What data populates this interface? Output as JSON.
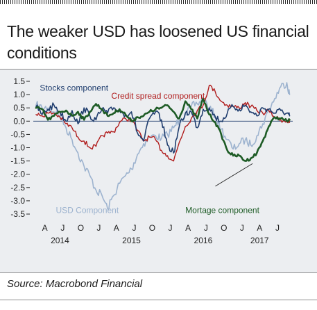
{
  "header": {
    "title": "The weaker USD has loosened US financial conditions"
  },
  "footer": {
    "source": "Source: Macrobond Financial"
  },
  "colors": {
    "stocks": "#1f3d6e",
    "credit": "#b01c1c",
    "usd": "#9db3cf",
    "mortgage": "#1d5b25",
    "zero_line": "#1f3d6e"
  },
  "chart_data": {
    "type": "line",
    "title": "The weaker USD has loosened US financial conditions",
    "xlabel": "",
    "ylabel": "",
    "ylim": [
      -3.5,
      1.5
    ],
    "xlim": [
      "2014-03-01",
      "2017-09-15"
    ],
    "yticks": [
      "1.5",
      "1.0",
      "0.5",
      "0.0",
      "-0.5",
      "-1.0",
      "-1.5",
      "-2.0",
      "-2.5",
      "-3.0",
      "-3.5"
    ],
    "xticks_month": [
      "A",
      "J",
      "O",
      "J",
      "A",
      "J",
      "O",
      "J",
      "A",
      "J",
      "O",
      "J",
      "A",
      "J"
    ],
    "xticks_year": [
      "2014",
      "2015",
      "2016",
      "2017"
    ],
    "grid": false,
    "series": [
      {
        "name": "Stocks component",
        "key": "stocks",
        "points": [
          [
            "2014-03-01",
            0.55
          ],
          [
            "2014-04-01",
            0.25
          ],
          [
            "2014-05-01",
            0.45
          ],
          [
            "2014-06-01",
            0.6
          ],
          [
            "2014-07-01",
            0.35
          ],
          [
            "2014-08-01",
            0.0
          ],
          [
            "2014-09-01",
            0.4
          ],
          [
            "2014-10-01",
            -0.1
          ],
          [
            "2014-11-01",
            0.5
          ],
          [
            "2014-12-01",
            0.2
          ],
          [
            "2015-01-01",
            0.05
          ],
          [
            "2015-02-01",
            0.45
          ],
          [
            "2015-03-01",
            0.3
          ],
          [
            "2015-04-01",
            0.5
          ],
          [
            "2015-05-01",
            0.4
          ],
          [
            "2015-06-01",
            0.25
          ],
          [
            "2015-07-01",
            0.35
          ],
          [
            "2015-08-01",
            -0.45
          ],
          [
            "2015-09-01",
            -0.75
          ],
          [
            "2015-10-01",
            0.1
          ],
          [
            "2015-11-01",
            0.35
          ],
          [
            "2015-12-01",
            0.05
          ],
          [
            "2016-01-01",
            -0.9
          ],
          [
            "2016-02-01",
            -1.2
          ],
          [
            "2016-03-01",
            -0.2
          ],
          [
            "2016-04-01",
            0.3
          ],
          [
            "2016-05-01",
            0.35
          ],
          [
            "2016-06-01",
            -0.25
          ],
          [
            "2016-07-01",
            0.45
          ],
          [
            "2016-08-01",
            0.5
          ],
          [
            "2016-09-01",
            0.15
          ],
          [
            "2016-10-01",
            0.0
          ],
          [
            "2016-11-01",
            0.3
          ],
          [
            "2016-12-01",
            0.55
          ],
          [
            "2017-01-01",
            0.45
          ],
          [
            "2017-02-01",
            0.6
          ],
          [
            "2017-03-01",
            0.35
          ],
          [
            "2017-04-01",
            0.2
          ],
          [
            "2017-05-01",
            0.5
          ],
          [
            "2017-06-01",
            0.45
          ],
          [
            "2017-07-01",
            0.3
          ],
          [
            "2017-08-01",
            0.4
          ],
          [
            "2017-09-01",
            0.3
          ],
          [
            "2017-09-15",
            0.2
          ]
        ]
      },
      {
        "name": "Credit spread component",
        "key": "credit",
        "points": [
          [
            "2014-03-01",
            0.25
          ],
          [
            "2014-04-01",
            0.2
          ],
          [
            "2014-05-01",
            0.3
          ],
          [
            "2014-06-01",
            0.3
          ],
          [
            "2014-07-01",
            0.15
          ],
          [
            "2014-08-01",
            -0.1
          ],
          [
            "2014-09-01",
            -0.25
          ],
          [
            "2014-10-01",
            -0.6
          ],
          [
            "2014-11-01",
            -0.75
          ],
          [
            "2014-12-01",
            -1.0
          ],
          [
            "2015-01-01",
            -0.95
          ],
          [
            "2015-02-01",
            -0.55
          ],
          [
            "2015-03-01",
            -0.45
          ],
          [
            "2015-04-01",
            -0.4
          ],
          [
            "2015-05-01",
            -0.05
          ],
          [
            "2015-06-01",
            0.1
          ],
          [
            "2015-07-01",
            0.05
          ],
          [
            "2015-08-01",
            -0.35
          ],
          [
            "2015-09-01",
            -0.75
          ],
          [
            "2015-10-01",
            -0.6
          ],
          [
            "2015-11-01",
            -0.7
          ],
          [
            "2015-12-01",
            -1.1
          ],
          [
            "2016-01-01",
            -1.3
          ],
          [
            "2016-02-01",
            -1.5
          ],
          [
            "2016-03-01",
            -0.8
          ],
          [
            "2016-04-01",
            -0.2
          ],
          [
            "2016-05-01",
            0.1
          ],
          [
            "2016-06-01",
            0.4
          ],
          [
            "2016-07-01",
            0.6
          ],
          [
            "2016-08-01",
            1.35
          ],
          [
            "2016-09-01",
            1.1
          ],
          [
            "2016-10-01",
            0.75
          ],
          [
            "2016-11-01",
            0.6
          ],
          [
            "2016-12-01",
            0.55
          ],
          [
            "2017-01-01",
            0.5
          ],
          [
            "2017-02-01",
            0.7
          ],
          [
            "2017-03-01",
            0.55
          ],
          [
            "2017-04-01",
            0.4
          ],
          [
            "2017-05-01",
            0.3
          ],
          [
            "2017-06-01",
            0.4
          ],
          [
            "2017-07-01",
            0.15
          ],
          [
            "2017-08-01",
            0.05
          ],
          [
            "2017-09-01",
            0.0
          ],
          [
            "2017-09-15",
            -0.05
          ]
        ]
      },
      {
        "name": "USD Component",
        "key": "usd",
        "points": [
          [
            "2014-03-01",
            0.6
          ],
          [
            "2014-04-01",
            0.5
          ],
          [
            "2014-05-01",
            0.5
          ],
          [
            "2014-06-01",
            0.35
          ],
          [
            "2014-07-01",
            0.2
          ],
          [
            "2014-08-01",
            -0.25
          ],
          [
            "2014-09-01",
            -0.7
          ],
          [
            "2014-10-01",
            -1.2
          ],
          [
            "2014-11-01",
            -1.7
          ],
          [
            "2014-12-01",
            -2.05
          ],
          [
            "2015-01-01",
            -2.6
          ],
          [
            "2015-02-01",
            -2.8
          ],
          [
            "2015-03-01",
            -3.3
          ],
          [
            "2015-04-01",
            -2.8
          ],
          [
            "2015-05-01",
            -2.35
          ],
          [
            "2015-06-01",
            -2.05
          ],
          [
            "2015-07-01",
            -1.8
          ],
          [
            "2015-08-01",
            -1.25
          ],
          [
            "2015-09-01",
            -0.85
          ],
          [
            "2015-10-01",
            -0.6
          ],
          [
            "2015-11-01",
            -0.55
          ],
          [
            "2015-12-01",
            -0.65
          ],
          [
            "2016-01-01",
            -0.5
          ],
          [
            "2016-02-01",
            -0.25
          ],
          [
            "2016-03-01",
            0.05
          ],
          [
            "2016-04-01",
            0.25
          ],
          [
            "2016-05-01",
            0.55
          ],
          [
            "2016-06-01",
            0.65
          ],
          [
            "2016-07-01",
            0.85
          ],
          [
            "2016-08-01",
            0.5
          ],
          [
            "2016-09-01",
            0.2
          ],
          [
            "2016-10-01",
            -0.3
          ],
          [
            "2016-11-01",
            -0.7
          ],
          [
            "2016-12-01",
            -1.05
          ],
          [
            "2017-01-01",
            -0.85
          ],
          [
            "2017-02-01",
            -0.7
          ],
          [
            "2017-03-01",
            -0.9
          ],
          [
            "2017-04-01",
            -0.55
          ],
          [
            "2017-05-01",
            -0.1
          ],
          [
            "2017-06-01",
            0.4
          ],
          [
            "2017-07-01",
            0.85
          ],
          [
            "2017-08-01",
            1.3
          ],
          [
            "2017-09-01",
            1.45
          ],
          [
            "2017-09-15",
            1.0
          ]
        ]
      },
      {
        "name": "Mortage component",
        "key": "mortgage",
        "points": [
          [
            "2014-03-01",
            0.5
          ],
          [
            "2014-04-01",
            0.45
          ],
          [
            "2014-05-01",
            0.05
          ],
          [
            "2014-06-01",
            0.2
          ],
          [
            "2014-07-01",
            0.35
          ],
          [
            "2014-08-01",
            0.4
          ],
          [
            "2014-09-01",
            0.2
          ],
          [
            "2014-10-01",
            0.35
          ],
          [
            "2014-11-01",
            0.05
          ],
          [
            "2014-12-01",
            0.35
          ],
          [
            "2015-01-01",
            0.65
          ],
          [
            "2015-02-01",
            0.45
          ],
          [
            "2015-03-01",
            0.2
          ],
          [
            "2015-04-01",
            0.3
          ],
          [
            "2015-05-01",
            0.45
          ],
          [
            "2015-06-01",
            0.25
          ],
          [
            "2015-07-01",
            0.0
          ],
          [
            "2015-08-01",
            0.15
          ],
          [
            "2015-09-01",
            0.2
          ],
          [
            "2015-10-01",
            0.35
          ],
          [
            "2015-11-01",
            0.45
          ],
          [
            "2015-12-01",
            0.5
          ],
          [
            "2016-01-01",
            0.6
          ],
          [
            "2016-02-01",
            0.35
          ],
          [
            "2016-03-01",
            0.1
          ],
          [
            "2016-04-01",
            0.75
          ],
          [
            "2016-05-01",
            0.45
          ],
          [
            "2016-06-01",
            0.1
          ],
          [
            "2016-07-01",
            0.85
          ],
          [
            "2016-08-01",
            0.25
          ],
          [
            "2016-09-01",
            -0.05
          ],
          [
            "2016-10-01",
            -0.5
          ],
          [
            "2016-11-01",
            -1.1
          ],
          [
            "2016-12-01",
            -1.3
          ],
          [
            "2017-01-01",
            -1.3
          ],
          [
            "2017-02-01",
            -1.5
          ],
          [
            "2017-03-01",
            -1.4
          ],
          [
            "2017-04-01",
            -1.2
          ],
          [
            "2017-05-01",
            -0.75
          ],
          [
            "2017-06-01",
            -0.2
          ],
          [
            "2017-07-01",
            0.15
          ],
          [
            "2017-08-01",
            0.1
          ],
          [
            "2017-09-01",
            0.0
          ],
          [
            "2017-09-15",
            0.05
          ]
        ]
      }
    ]
  }
}
